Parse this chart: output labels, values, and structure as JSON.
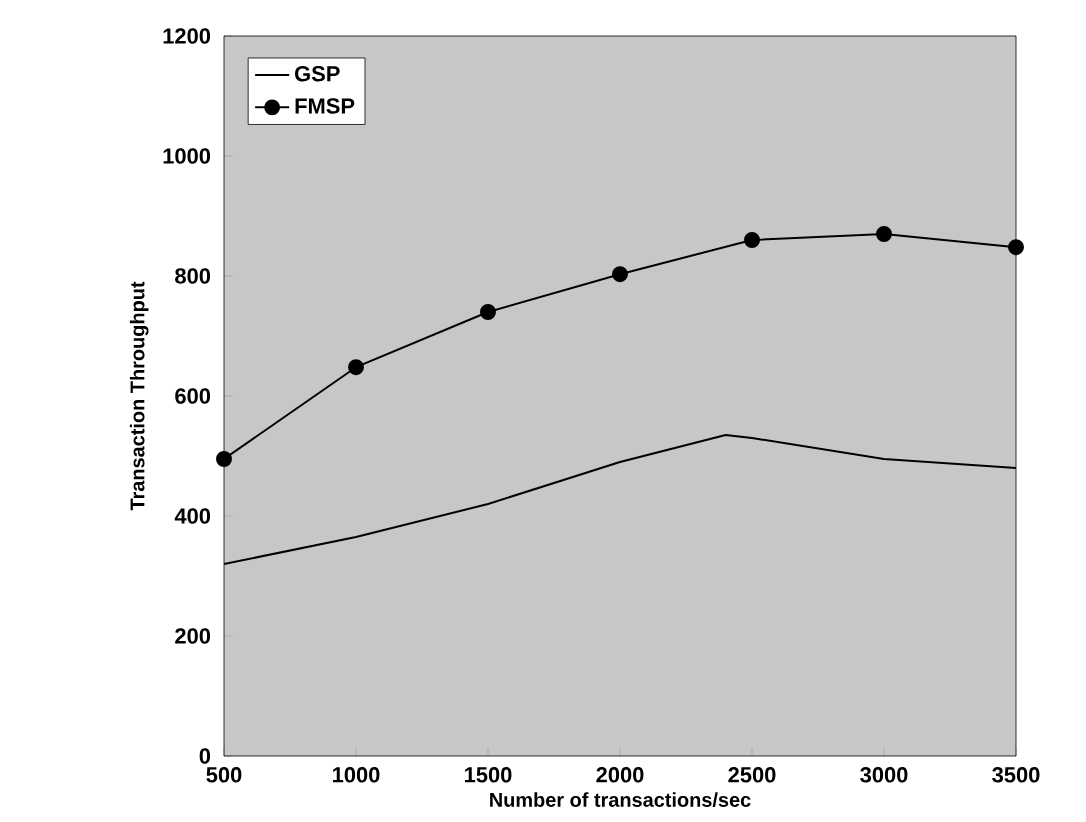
{
  "chart_data": {
    "type": "line",
    "xlabel": "Number of transactions/sec",
    "ylabel": "Transaction Throughput",
    "xlim": [
      500,
      3500
    ],
    "xticks": [
      500,
      1000,
      1500,
      2000,
      2500,
      3000,
      3500
    ],
    "ylim": [
      0,
      1200
    ],
    "yticks": [
      0,
      200,
      400,
      600,
      800,
      1000,
      1200
    ],
    "legend": "top left",
    "grid": false,
    "series": [
      {
        "name": "GSP",
        "color": "#000000",
        "marker": "none",
        "x": [
          500,
          1000,
          1500,
          2000,
          2400,
          2500,
          3000,
          3500
        ],
        "values": [
          320,
          365,
          420,
          490,
          535,
          530,
          495,
          480
        ]
      },
      {
        "name": "FMSP",
        "color": "#000000",
        "marker": "circle",
        "x": [
          500,
          1000,
          1500,
          2000,
          2500,
          3000,
          3500
        ],
        "values": [
          495,
          648,
          740,
          803,
          860,
          870,
          848
        ]
      }
    ]
  }
}
